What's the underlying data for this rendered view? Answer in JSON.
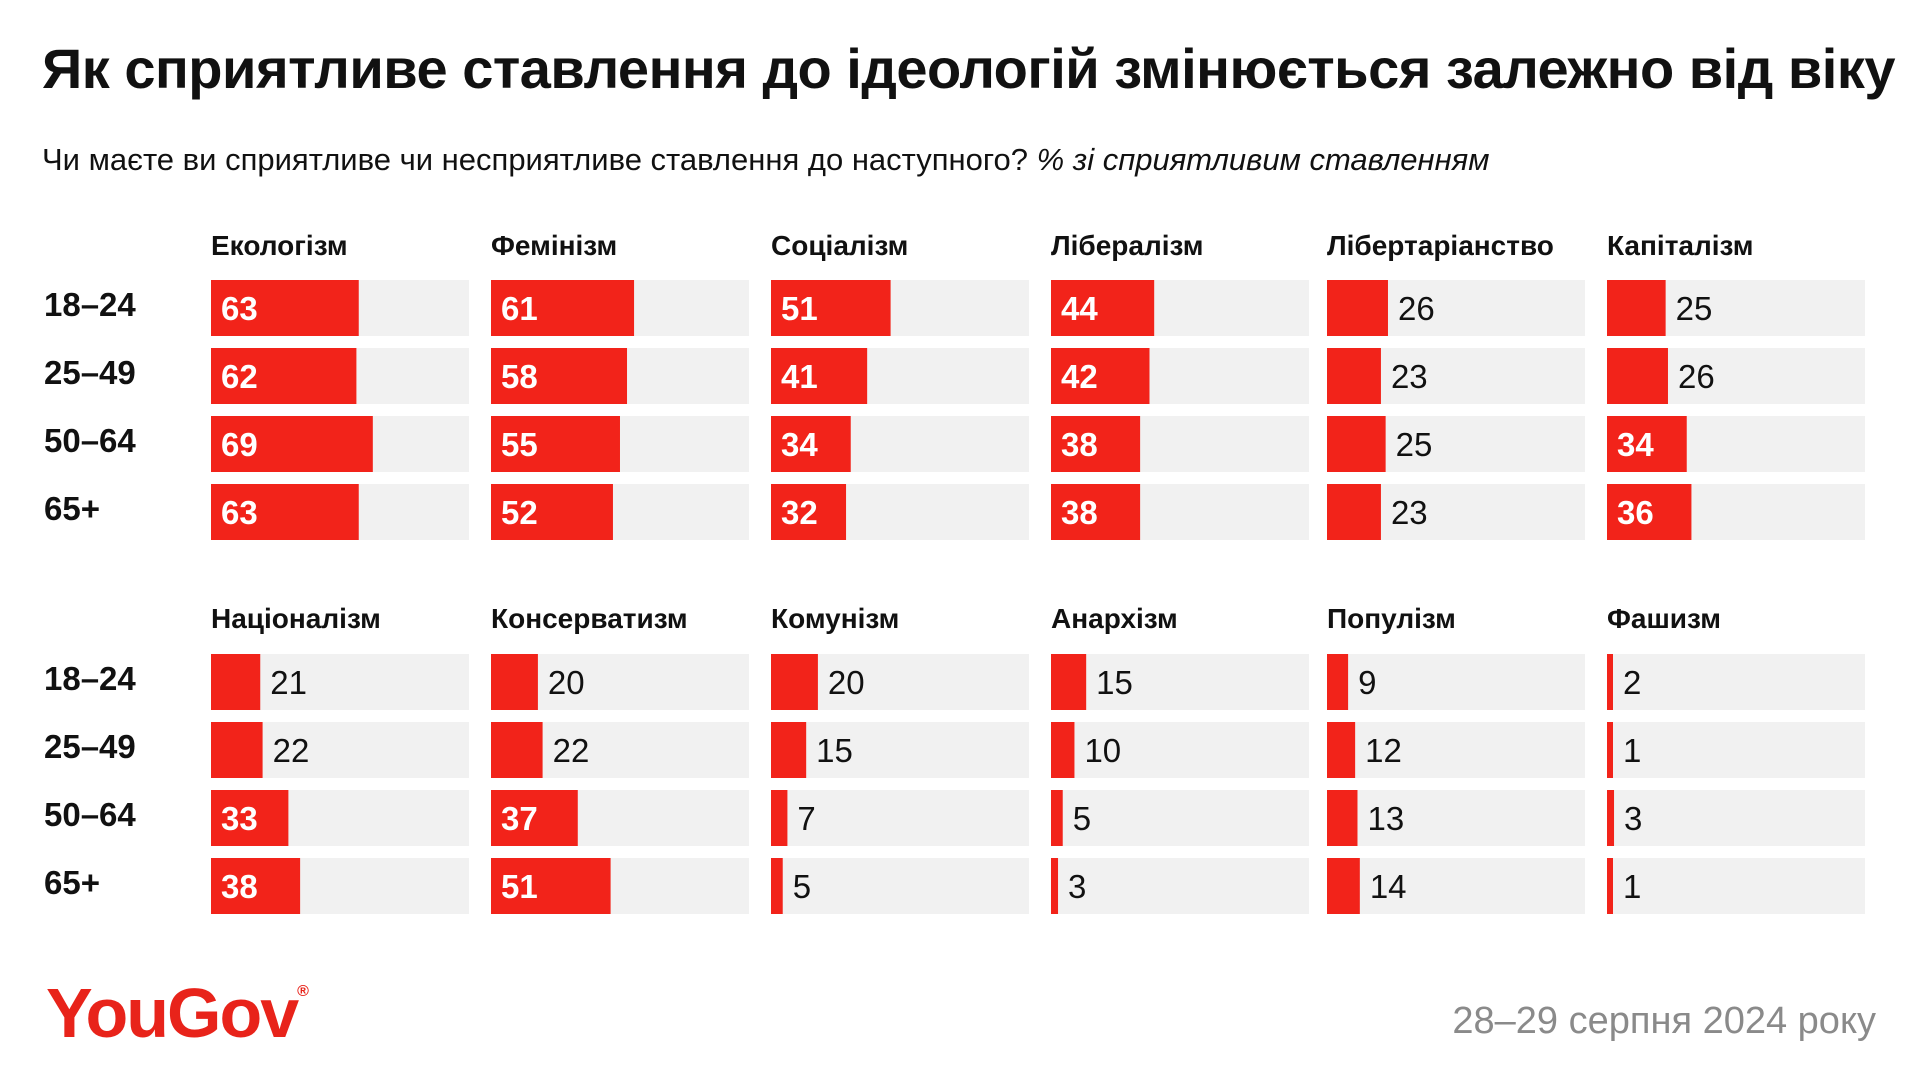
{
  "title": "Як сприятливе ставлення до ідеологій змінюється залежно від віку",
  "subtitle": {
    "question": "Чи маєте ви сприятливе чи несприятливе ставлення до наступного?",
    "measure": "% зі сприятливим ставленням"
  },
  "brand": {
    "name": "YouGov",
    "mark": "®"
  },
  "date": "28–29 серпня 2024 року",
  "colors": {
    "bar": "#f2231a",
    "track": "#f1f1f1",
    "label_inside": "#ffffff",
    "label_outside": "#111111"
  },
  "chart_data": {
    "type": "bar",
    "orientation": "horizontal",
    "age_groups": [
      "18–24",
      "25–49",
      "50–64",
      "65+"
    ],
    "xlim": [
      0,
      100
    ],
    "panels": [
      {
        "name": "Екологізм",
        "values": [
          63,
          62,
          69,
          63
        ]
      },
      {
        "name": "Фемінізм",
        "values": [
          61,
          58,
          55,
          52
        ]
      },
      {
        "name": "Соціалізм",
        "values": [
          51,
          41,
          34,
          32
        ]
      },
      {
        "name": "Лібералізм",
        "values": [
          44,
          42,
          38,
          38
        ]
      },
      {
        "name": "Лібертаріанство",
        "values": [
          26,
          23,
          25,
          23
        ]
      },
      {
        "name": "Капіталізм",
        "values": [
          25,
          26,
          34,
          36
        ]
      },
      {
        "name": "Націоналізм",
        "values": [
          21,
          22,
          33,
          38
        ]
      },
      {
        "name": "Консерватизм",
        "values": [
          20,
          22,
          37,
          51
        ]
      },
      {
        "name": "Комунізм",
        "values": [
          20,
          15,
          7,
          5
        ]
      },
      {
        "name": "Анархізм",
        "values": [
          15,
          10,
          5,
          3
        ]
      },
      {
        "name": "Популізм",
        "values": [
          9,
          12,
          13,
          14
        ]
      },
      {
        "name": "Фашизм",
        "values": [
          2,
          1,
          3,
          1
        ]
      }
    ]
  }
}
